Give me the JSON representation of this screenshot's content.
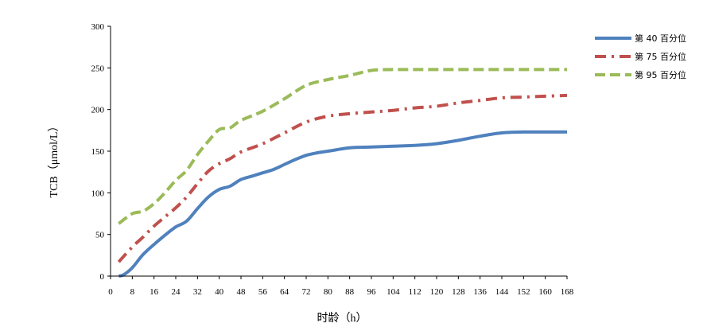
{
  "chart_data": {
    "type": "line",
    "title": "",
    "xlabel": "时龄（h）",
    "ylabel": "TCB（μmol/L）",
    "xlim": [
      0,
      168
    ],
    "ylim": [
      0,
      300
    ],
    "xticks": [
      0,
      8,
      16,
      24,
      32,
      40,
      48,
      56,
      64,
      72,
      80,
      88,
      96,
      104,
      112,
      120,
      128,
      136,
      144,
      152,
      160,
      168
    ],
    "yticks": [
      0,
      50,
      100,
      150,
      200,
      250,
      300
    ],
    "grid": false,
    "legend_position": "right",
    "series": [
      {
        "name": "第 40 百分位",
        "color": "#4f81bd",
        "dash": "solid",
        "x": [
          3,
          5,
          8,
          12,
          16,
          20,
          24,
          28,
          32,
          36,
          40,
          44,
          48,
          52,
          56,
          60,
          64,
          68,
          72,
          76,
          80,
          88,
          96,
          104,
          112,
          120,
          128,
          136,
          144,
          152,
          160,
          168
        ],
        "y": [
          0,
          2,
          10,
          26,
          38,
          49,
          59,
          66,
          81,
          95,
          104,
          108,
          116,
          120,
          124,
          128,
          134,
          140,
          145,
          148,
          150,
          154,
          155,
          156,
          157,
          159,
          163,
          168,
          172,
          173,
          173,
          173
        ]
      },
      {
        "name": "第 75 百分位",
        "color": "#c0504d",
        "dash": "dash-dot",
        "x": [
          3,
          8,
          12,
          16,
          20,
          24,
          28,
          32,
          36,
          40,
          44,
          48,
          56,
          64,
          72,
          80,
          88,
          96,
          104,
          112,
          120,
          128,
          136,
          144,
          152,
          160,
          168
        ],
        "y": [
          17,
          35,
          47,
          60,
          71,
          82,
          95,
          111,
          126,
          135,
          141,
          149,
          159,
          172,
          185,
          192,
          195,
          197,
          199,
          202,
          204,
          208,
          211,
          214,
          215,
          216,
          217
        ]
      },
      {
        "name": "第 95 百分位",
        "color": "#9bbb59",
        "dash": "dash",
        "x": [
          3,
          8,
          12,
          16,
          20,
          24,
          28,
          32,
          36,
          40,
          44,
          48,
          56,
          64,
          72,
          80,
          88,
          96,
          104,
          112,
          120,
          128,
          136,
          144,
          152,
          160,
          168
        ],
        "y": [
          63,
          75,
          78,
          87,
          100,
          115,
          127,
          146,
          162,
          176,
          178,
          187,
          198,
          213,
          229,
          236,
          241,
          247,
          248,
          248,
          248,
          248,
          248,
          248,
          248,
          248,
          248
        ]
      }
    ]
  }
}
